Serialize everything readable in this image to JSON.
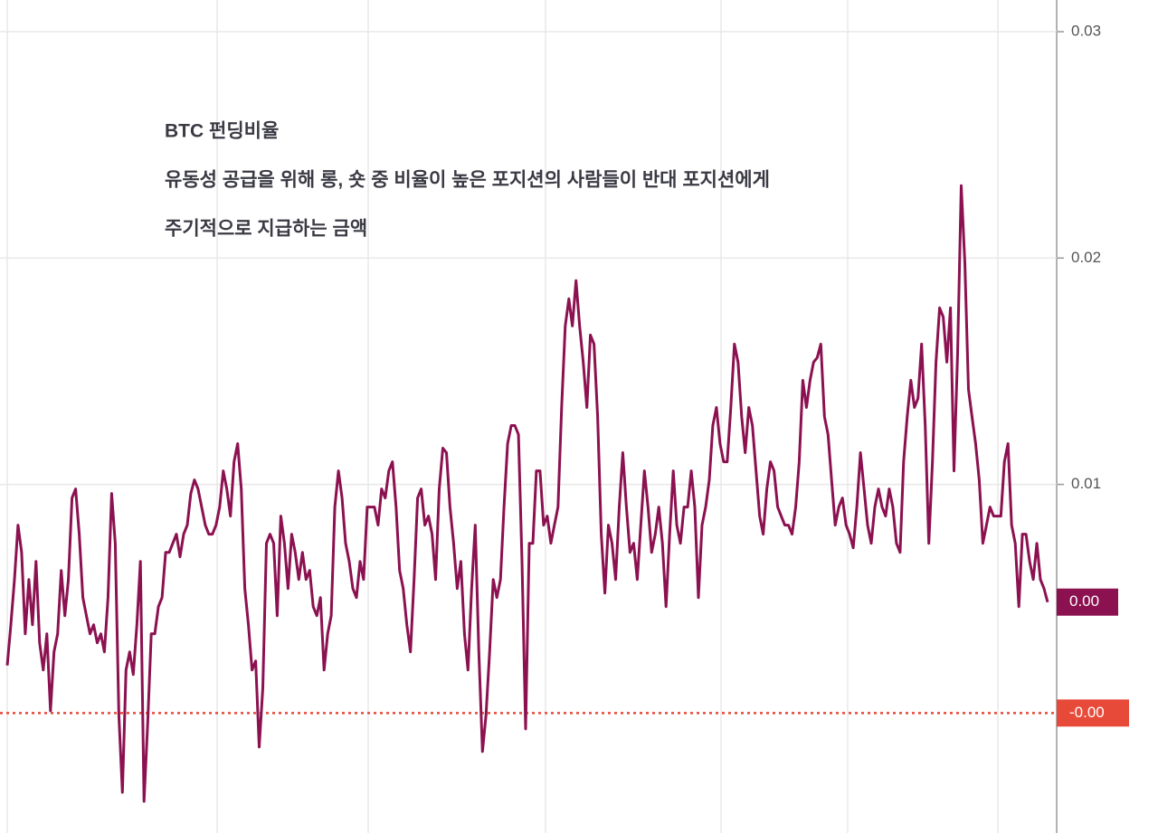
{
  "chart_data": {
    "type": "line",
    "title": "BTC 펀딩비율",
    "annotations": [
      "유동성 공급을 위해 롱, 숏 중 비율이 높은 포지션의 사람들이 반대 포지션에게",
      "주기적으로 지급하는 금액"
    ],
    "series": [
      {
        "name": "BTC",
        "color": "#8b1150",
        "values": [
          0.002,
          0.0038,
          0.0058,
          0.0082,
          0.007,
          0.0034,
          0.0058,
          0.0038,
          0.0066,
          0.003,
          0.0018,
          0.0034,
          0,
          0.0026,
          0.0034,
          0.0062,
          0.0042,
          0.0058,
          0.0094,
          0.0098,
          0.0078,
          0.005,
          0.0042,
          0.0034,
          0.0038,
          0.003,
          0.0034,
          0.0026,
          0.005,
          0.0096,
          0.0074,
          -0.0002,
          -0.0036,
          0.0018,
          0.0026,
          0.0016,
          0.0038,
          0.0066,
          -0.004,
          -0.0006,
          0.0034,
          0.0034,
          0.0046,
          0.005,
          0.007,
          0.007,
          0.0074,
          0.0078,
          0.0068,
          0.0078,
          0.0082,
          0.0096,
          0.0102,
          0.0098,
          0.009,
          0.0082,
          0.0078,
          0.0078,
          0.0082,
          0.009,
          0.0106,
          0.0098,
          0.0086,
          0.011,
          0.0118,
          0.0098,
          0.0054,
          0.0038,
          0.0018,
          0.0022,
          -0.0016,
          0.001,
          0.0074,
          0.0078,
          0.0074,
          0.0042,
          0.0086,
          0.0074,
          0.0054,
          0.0078,
          0.007,
          0.0058,
          0.007,
          0.0058,
          0.0062,
          0.0046,
          0.0042,
          0.005,
          0.0018,
          0.0034,
          0.0042,
          0.009,
          0.0106,
          0.0094,
          0.0074,
          0.0066,
          0.0054,
          0.005,
          0.0066,
          0.0058,
          0.009,
          0.009,
          0.009,
          0.0082,
          0.0098,
          0.0094,
          0.0106,
          0.011,
          0.009,
          0.0062,
          0.0054,
          0.0038,
          0.0026,
          0.0058,
          0.0094,
          0.0098,
          0.0082,
          0.0086,
          0.0078,
          0.0058,
          0.0098,
          0.0116,
          0.0114,
          0.009,
          0.0074,
          0.0054,
          0.0066,
          0.0034,
          0.0018,
          0.0054,
          0.0082,
          0.0026,
          -0.0018,
          -0.0002,
          0.0026,
          0.0058,
          0.005,
          0.0058,
          0.009,
          0.0118,
          0.0126,
          0.0126,
          0.0122,
          0.0066,
          -0.0008,
          0.0074,
          0.0074,
          0.0106,
          0.0106,
          0.0082,
          0.0086,
          0.0074,
          0.0082,
          0.009,
          0.0134,
          0.017,
          0.0182,
          0.017,
          0.019,
          0.017,
          0.0154,
          0.0134,
          0.0166,
          0.0162,
          0.013,
          0.0078,
          0.0052,
          0.0082,
          0.0074,
          0.0058,
          0.009,
          0.0114,
          0.009,
          0.007,
          0.0074,
          0.0058,
          0.0082,
          0.0106,
          0.009,
          0.007,
          0.0078,
          0.009,
          0.0074,
          0.0046,
          0.0078,
          0.0106,
          0.0082,
          0.0074,
          0.009,
          0.009,
          0.0106,
          0.009,
          0.005,
          0.0082,
          0.009,
          0.0102,
          0.0126,
          0.0134,
          0.0118,
          0.011,
          0.011,
          0.0134,
          0.0162,
          0.0154,
          0.013,
          0.0114,
          0.0134,
          0.0126,
          0.0106,
          0.0086,
          0.0078,
          0.0098,
          0.011,
          0.0106,
          0.009,
          0.0086,
          0.0082,
          0.0082,
          0.0078,
          0.009,
          0.011,
          0.0146,
          0.0134,
          0.0146,
          0.0154,
          0.0156,
          0.0162,
          0.013,
          0.0122,
          0.0102,
          0.0082,
          0.009,
          0.0094,
          0.0082,
          0.0078,
          0.0072,
          0.009,
          0.0114,
          0.0098,
          0.0082,
          0.0074,
          0.009,
          0.0098,
          0.009,
          0.0086,
          0.0098,
          0.009,
          0.0074,
          0.007,
          0.011,
          0.013,
          0.0146,
          0.0134,
          0.0138,
          0.0162,
          0.0126,
          0.0074,
          0.011,
          0.0154,
          0.0178,
          0.0174,
          0.0154,
          0.0178,
          0.0106,
          0.0158,
          0.0232,
          0.0198,
          0.0142,
          0.013,
          0.0118,
          0.0102,
          0.0074,
          0.0082,
          0.009,
          0.0086,
          0.0086,
          0.0086,
          0.011,
          0.0118,
          0.0082,
          0.0074,
          0.0046,
          0.0078,
          0.0078,
          0.0066,
          0.0058,
          0.0074,
          0.0058,
          0.0054,
          0.0048
        ]
      }
    ],
    "current_value": {
      "value": 0.0048,
      "label": "0.00",
      "color": "#8b1150"
    },
    "reference_line": {
      "value": -0.0001,
      "label": "-0.00",
      "color": "#e84a3a"
    },
    "ylim": [
      -0.0054,
      0.0314
    ],
    "yticks": [
      0.01,
      0.02,
      0.03
    ],
    "grid": true
  }
}
